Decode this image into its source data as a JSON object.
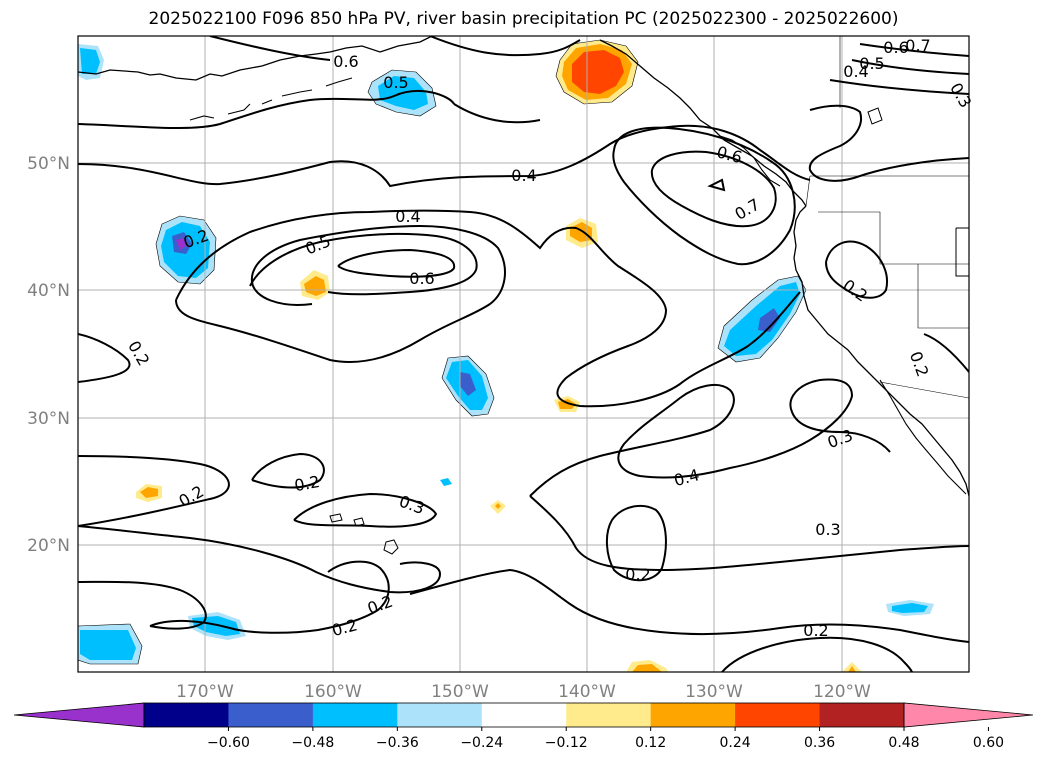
{
  "title": "2025022100 F096 850 hPa PV, river basin precipitation PC (2025022300 - 2025022600)",
  "lat_labels": [
    "50°N",
    "40°N",
    "30°N",
    "20°N"
  ],
  "lon_labels": [
    "170°W",
    "160°W",
    "150°W",
    "140°W",
    "130°W",
    "120°W"
  ],
  "colorbar": {
    "tick_labels": [
      "−0.60",
      "−0.48",
      "−0.36",
      "−0.24",
      "−0.12",
      "0.12",
      "0.24",
      "0.36",
      "0.48",
      "0.60"
    ],
    "colors": [
      "#9932CC",
      "#00008B",
      "#3A5FCD",
      "#00BFFF",
      "#ADE3FA",
      "#FFFFFF",
      "#FFEB8C",
      "#FFA500",
      "#FF4500",
      "#B22222",
      "#FF88AA"
    ]
  },
  "contour_labels": [
    "0.6",
    "0.5",
    "0.6",
    "0.7",
    "0.5",
    "0.4",
    "0.3",
    "0.4",
    "0.6",
    "0.7",
    "0.2",
    "0.4",
    "0.5",
    "0.6",
    "0.2",
    "0.2",
    "0.2",
    "0.3",
    "0.2",
    "0.2",
    "0.2",
    "0.4",
    "0.3",
    "0.2",
    "0.3",
    "0.2",
    "0.2"
  ]
}
